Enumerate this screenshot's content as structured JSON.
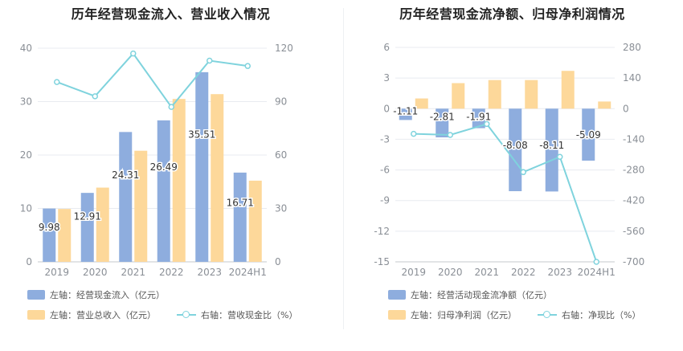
{
  "colors": {
    "blue": "#8eadde",
    "orange": "#fdd89a",
    "cyan": "#7fd3dd",
    "grid": "#e8ebf0",
    "axis": "#9aa0a6"
  },
  "chart_data": [
    {
      "type": "bar",
      "title": "历年经营现金流入、营业收入情况",
      "categories": [
        "2019",
        "2020",
        "2021",
        "2022",
        "2023",
        "2024H1"
      ],
      "left_axis": {
        "ylim": [
          0,
          40
        ],
        "ticks": [
          "0",
          "10",
          "20",
          "30",
          "40"
        ]
      },
      "right_axis": {
        "ylim": [
          0,
          120
        ],
        "ticks": [
          "0",
          "30",
          "60",
          "90",
          "120"
        ]
      },
      "series": [
        {
          "name": "左轴：经营现金流入（亿元）",
          "axis": "left",
          "kind": "bar",
          "color": "#8eadde",
          "values": [
            9.98,
            12.91,
            24.31,
            26.49,
            35.51,
            16.71
          ],
          "labels": [
            "9.98",
            "12.91",
            "24.31",
            "26.49",
            "35.51",
            "16.71"
          ]
        },
        {
          "name": "左轴：营业总收入（亿元）",
          "axis": "left",
          "kind": "bar",
          "color": "#fdd89a",
          "values": [
            9.9,
            13.9,
            20.8,
            30.5,
            31.4,
            15.2
          ]
        },
        {
          "name": "右轴：营收现金比（%）",
          "axis": "right",
          "kind": "line",
          "color": "#7fd3dd",
          "values": [
            101,
            93,
            117,
            87,
            113,
            110
          ]
        }
      ],
      "legend": [
        {
          "kind": "bar",
          "color": "#8eadde",
          "label": "左轴：经营现金流入（亿元）"
        },
        {
          "kind": "bar",
          "color": "#fdd89a",
          "label": "左轴：营业总收入（亿元）"
        },
        {
          "kind": "line",
          "color": "#7fd3dd",
          "label": "右轴：营收现金比（%）"
        }
      ]
    },
    {
      "type": "bar",
      "title": "历年经营现金流净额、归母净利润情况",
      "categories": [
        "2019",
        "2020",
        "2021",
        "2022",
        "2023",
        "2024H1"
      ],
      "left_axis": {
        "ylim": [
          -15,
          6
        ],
        "ticks": [
          "-15",
          "-12",
          "-9",
          "-6",
          "-3",
          "0",
          "3",
          "6"
        ]
      },
      "right_axis": {
        "ylim": [
          -700,
          280
        ],
        "ticks": [
          "-700",
          "-560",
          "-420",
          "-280",
          "-140",
          "0",
          "140",
          "280"
        ]
      },
      "series": [
        {
          "name": "左轴：经营活动现金流净额（亿元）",
          "axis": "left",
          "kind": "bar",
          "color": "#8eadde",
          "values": [
            -1.11,
            -2.81,
            -1.91,
            -8.08,
            -8.11,
            -5.09
          ],
          "labels": [
            "-1.11",
            "-2.81",
            "-1.91",
            "-8.08",
            "-8.11",
            "-5.09"
          ]
        },
        {
          "name": "左轴：归母净利润（亿元）",
          "axis": "left",
          "kind": "bar",
          "color": "#fdd89a",
          "values": [
            1.0,
            2.5,
            2.8,
            2.8,
            3.7,
            0.7
          ]
        },
        {
          "name": "右轴：净现比（%）",
          "axis": "right",
          "kind": "line",
          "color": "#7fd3dd",
          "values": [
            -115,
            -120,
            -70,
            -290,
            -220,
            -700
          ]
        }
      ],
      "legend": [
        {
          "kind": "bar",
          "color": "#8eadde",
          "label": "左轴：经营活动现金流净额（亿元）"
        },
        {
          "kind": "bar",
          "color": "#fdd89a",
          "label": "左轴：归母净利润（亿元）"
        },
        {
          "kind": "line",
          "color": "#7fd3dd",
          "label": "右轴：净现比（%）"
        }
      ]
    }
  ]
}
